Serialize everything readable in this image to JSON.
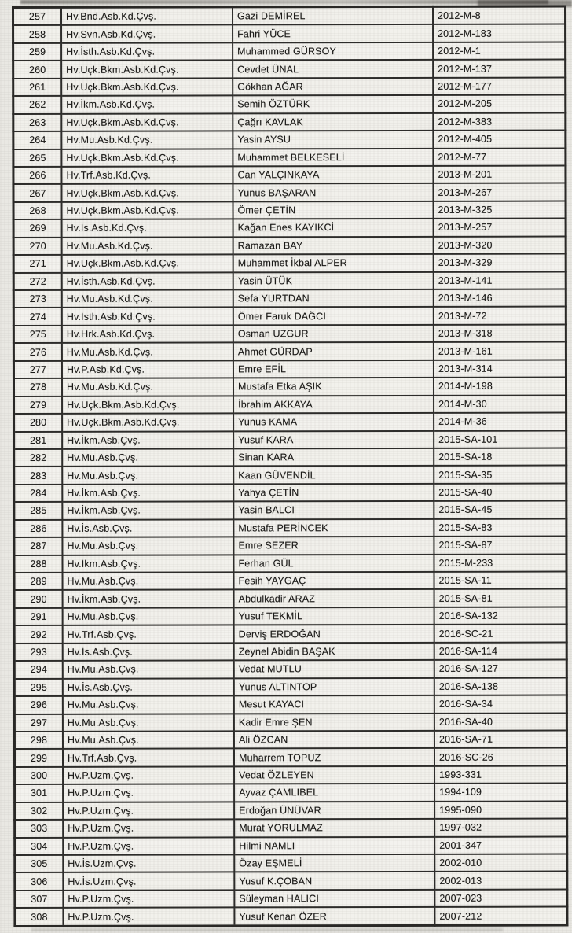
{
  "table": {
    "rows": [
      {
        "no": "257",
        "rank": "Hv.Bnd.Asb.Kd.Çvş.",
        "name": "Gazi DEMİREL",
        "reg": "2012-M-8"
      },
      {
        "no": "258",
        "rank": "Hv.Svn.Asb.Kd.Çvş.",
        "name": "Fahri YÜCE",
        "reg": "2012-M-183"
      },
      {
        "no": "259",
        "rank": "Hv.İsth.Asb.Kd.Çvş.",
        "name": "Muhammed GÜRSOY",
        "reg": "2012-M-1"
      },
      {
        "no": "260",
        "rank": "Hv.Uçk.Bkm.Asb.Kd.Çvş.",
        "name": "Cevdet ÜNAL",
        "reg": "2012-M-137"
      },
      {
        "no": "261",
        "rank": "Hv.Uçk.Bkm.Asb.Kd.Çvş.",
        "name": "Gökhan AĞAR",
        "reg": "2012-M-177"
      },
      {
        "no": "262",
        "rank": "Hv.İkm.Asb.Kd.Çvş.",
        "name": "Semih ÖZTÜRK",
        "reg": "2012-M-205"
      },
      {
        "no": "263",
        "rank": "Hv.Uçk.Bkm.Asb.Kd.Çvş.",
        "name": "Çağrı KAVLAK",
        "reg": "2012-M-383"
      },
      {
        "no": "264",
        "rank": "Hv.Mu.Asb.Kd.Çvş.",
        "name": "Yasin AYSU",
        "reg": "2012-M-405"
      },
      {
        "no": "265",
        "rank": "Hv.Uçk.Bkm.Asb.Kd.Çvş.",
        "name": "Muhammet BELKESELİ",
        "reg": "2012-M-77"
      },
      {
        "no": "266",
        "rank": "Hv.Trf.Asb.Kd.Çvş.",
        "name": "Can YALÇINKAYA",
        "reg": "2013-M-201"
      },
      {
        "no": "267",
        "rank": "Hv.Uçk.Bkm.Asb.Kd.Çvş.",
        "name": "Yunus BAŞARAN",
        "reg": "2013-M-267"
      },
      {
        "no": "268",
        "rank": "Hv.Uçk.Bkm.Asb.Kd.Çvş.",
        "name": "Ömer ÇETİN",
        "reg": "2013-M-325"
      },
      {
        "no": "269",
        "rank": "Hv.İs.Asb.Kd.Çvş.",
        "name": "Kağan Enes KAYIKCİ",
        "reg": "2013-M-257"
      },
      {
        "no": "270",
        "rank": "Hv.Mu.Asb.Kd.Çvş.",
        "name": "Ramazan BAY",
        "reg": "2013-M-320"
      },
      {
        "no": "271",
        "rank": "Hv.Uçk.Bkm.Asb.Kd.Çvş.",
        "name": "Muhammet İkbal ALPER",
        "reg": "2013-M-329"
      },
      {
        "no": "272",
        "rank": "Hv.İsth.Asb.Kd.Çvş.",
        "name": "Yasin ÜTÜK",
        "reg": "2013-M-141"
      },
      {
        "no": "273",
        "rank": "Hv.Mu.Asb.Kd.Çvş.",
        "name": "Sefa YURTDAN",
        "reg": "2013-M-146"
      },
      {
        "no": "274",
        "rank": "Hv.İsth.Asb.Kd.Çvş.",
        "name": "Ömer Faruk DAĞCI",
        "reg": "2013-M-72"
      },
      {
        "no": "275",
        "rank": "Hv.Hrk.Asb.Kd.Çvş.",
        "name": "Osman UZGUR",
        "reg": "2013-M-318"
      },
      {
        "no": "276",
        "rank": "Hv.Mu.Asb.Kd.Çvş.",
        "name": "Ahmet GÜRDAP",
        "reg": "2013-M-161"
      },
      {
        "no": "277",
        "rank": "Hv.P.Asb.Kd.Çvş.",
        "name": "Emre EFİL",
        "reg": "2013-M-314"
      },
      {
        "no": "278",
        "rank": "Hv.Mu.Asb.Kd.Çvş.",
        "name": "Mustafa Etka AŞIK",
        "reg": "2014-M-198"
      },
      {
        "no": "279",
        "rank": "Hv.Uçk.Bkm.Asb.Kd.Çvş.",
        "name": "İbrahim AKKAYA",
        "reg": "2014-M-30"
      },
      {
        "no": "280",
        "rank": "Hv.Uçk.Bkm.Asb.Kd.Çvş.",
        "name": "Yunus KAMA",
        "reg": "2014-M-36"
      },
      {
        "no": "281",
        "rank": "Hv.İkm.Asb.Çvş.",
        "name": "Yusuf KARA",
        "reg": "2015-SA-101"
      },
      {
        "no": "282",
        "rank": "Hv.Mu.Asb.Çvş.",
        "name": "Sinan KARA",
        "reg": "2015-SA-18"
      },
      {
        "no": "283",
        "rank": "Hv.Mu.Asb.Çvş.",
        "name": "Kaan GÜVENDİL",
        "reg": "2015-SA-35"
      },
      {
        "no": "284",
        "rank": "Hv.İkm.Asb.Çvş.",
        "name": "Yahya ÇETİN",
        "reg": "2015-SA-40"
      },
      {
        "no": "285",
        "rank": "Hv.İkm.Asb.Çvş.",
        "name": "Yasin BALCI",
        "reg": "2015-SA-45"
      },
      {
        "no": "286",
        "rank": "Hv.İs.Asb.Çvş.",
        "name": "Mustafa PERİNCEK",
        "reg": "2015-SA-83"
      },
      {
        "no": "287",
        "rank": "Hv.Mu.Asb.Çvş.",
        "name": "Emre SEZER",
        "reg": "2015-SA-87"
      },
      {
        "no": "288",
        "rank": "Hv.İkm.Asb.Çvş.",
        "name": "Ferhan GÜL",
        "reg": "2015-M-233"
      },
      {
        "no": "289",
        "rank": "Hv.Mu.Asb.Çvş.",
        "name": "Fesih YAYGAÇ",
        "reg": "2015-SA-11"
      },
      {
        "no": "290",
        "rank": "Hv.İkm.Asb.Çvş.",
        "name": "Abdulkadir ARAZ",
        "reg": "2015-SA-81"
      },
      {
        "no": "291",
        "rank": "Hv.Mu.Asb.Çvş.",
        "name": "Yusuf TEKMİL",
        "reg": "2016-SA-132"
      },
      {
        "no": "292",
        "rank": "Hv.Trf.Asb.Çvş.",
        "name": "Derviş ERDOĞAN",
        "reg": "2016-SC-21"
      },
      {
        "no": "293",
        "rank": "Hv.İs.Asb.Çvş.",
        "name": "Zeynel Abidin BAŞAK",
        "reg": "2016-SA-114"
      },
      {
        "no": "294",
        "rank": "Hv.Mu.Asb.Çvş.",
        "name": "Vedat MUTLU",
        "reg": "2016-SA-127"
      },
      {
        "no": "295",
        "rank": "Hv.İs.Asb.Çvş.",
        "name": "Yunus ALTINTOP",
        "reg": "2016-SA-138"
      },
      {
        "no": "296",
        "rank": "Hv.Mu.Asb.Çvş.",
        "name": "Mesut KAYACI",
        "reg": "2016-SA-34"
      },
      {
        "no": "297",
        "rank": "Hv.Mu.Asb.Çvş.",
        "name": "Kadir Emre ŞEN",
        "reg": "2016-SA-40"
      },
      {
        "no": "298",
        "rank": "Hv.Mu.Asb.Çvş.",
        "name": "Ali ÖZCAN",
        "reg": "2016-SA-71"
      },
      {
        "no": "299",
        "rank": "Hv.Trf.Asb.Çvş.",
        "name": "Muharrem TOPUZ",
        "reg": "2016-SC-26"
      },
      {
        "no": "300",
        "rank": "Hv.P.Uzm.Çvş.",
        "name": "Vedat ÖZLEYEN",
        "reg": "1993-331"
      },
      {
        "no": "301",
        "rank": "Hv.P.Uzm.Çvş.",
        "name": "Ayvaz ÇAMLIBEL",
        "reg": "1994-109"
      },
      {
        "no": "302",
        "rank": "Hv.P.Uzm.Çvş.",
        "name": "Erdoğan ÜNÜVAR",
        "reg": "1995-090"
      },
      {
        "no": "303",
        "rank": "Hv.P.Uzm.Çvş.",
        "name": "Murat YORULMAZ",
        "reg": "1997-032"
      },
      {
        "no": "304",
        "rank": "Hv.P.Uzm.Çvş.",
        "name": "Hilmi NAMLI",
        "reg": "2001-347"
      },
      {
        "no": "305",
        "rank": "Hv.İs.Uzm.Çvş.",
        "name": "Özay EŞMELİ",
        "reg": "2002-010"
      },
      {
        "no": "306",
        "rank": "Hv.İs.Uzm.Çvş.",
        "name": "Yusuf K.ÇOBAN",
        "reg": "2002-013"
      },
      {
        "no": "307",
        "rank": "Hv.P.Uzm.Çvş.",
        "name": "Süleyman HALICI",
        "reg": "2007-023"
      },
      {
        "no": "308",
        "rank": "Hv.P.Uzm.Çvş.",
        "name": "Yusuf Kenan ÖZER",
        "reg": "2007-212"
      }
    ]
  }
}
